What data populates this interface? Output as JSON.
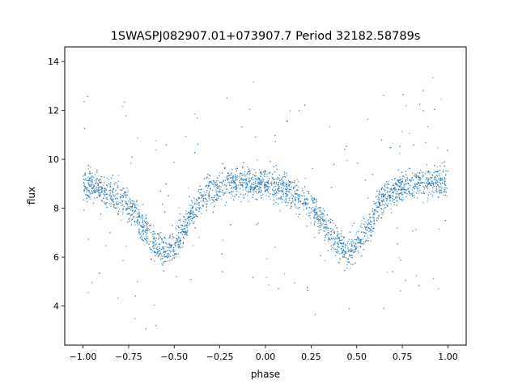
{
  "chart_data": {
    "type": "scatter",
    "title": "1SWASPJ082907.01+073907.7 Period 32182.58789s",
    "xlabel": "phase",
    "ylabel": "flux",
    "xlim": [
      -1.1,
      1.1
    ],
    "ylim": [
      2.4,
      14.6
    ],
    "x_ticks": [
      -1.0,
      -0.75,
      -0.5,
      -0.25,
      0.0,
      0.25,
      0.5,
      0.75,
      1.0
    ],
    "x_tick_labels": [
      "−1.00",
      "−0.75",
      "−0.50",
      "−0.25",
      "0.00",
      "0.25",
      "0.50",
      "0.75",
      "1.00"
    ],
    "y_ticks": [
      4,
      6,
      8,
      10,
      12,
      14
    ],
    "y_tick_labels": [
      "4",
      "6",
      "8",
      "10",
      "12",
      "14"
    ],
    "grid": false,
    "legend": "none",
    "marker_color": "#1f77b4",
    "series": [
      {
        "x": [
          -1.0,
          -0.95,
          -0.9,
          -0.85,
          -0.8,
          -0.75,
          -0.7,
          -0.65,
          -0.6,
          -0.55,
          -0.5,
          -0.45,
          -0.4,
          -0.35,
          -0.3,
          -0.25,
          -0.2,
          -0.15,
          -0.1,
          -0.05,
          0.0,
          0.05,
          0.1,
          0.15,
          0.2,
          0.25,
          0.3,
          0.35,
          0.4,
          0.45,
          0.5,
          0.55,
          0.6,
          0.65,
          0.7,
          0.75,
          0.8,
          0.85,
          0.9,
          0.95,
          1.0
        ],
        "y": [
          9.0,
          8.9,
          8.8,
          8.6,
          8.4,
          8.1,
          7.6,
          7.0,
          6.5,
          6.2,
          6.5,
          7.1,
          7.8,
          8.4,
          8.7,
          8.9,
          9.0,
          9.1,
          9.1,
          9.0,
          9.0,
          8.9,
          8.8,
          8.6,
          8.4,
          8.1,
          7.6,
          7.0,
          6.5,
          6.2,
          6.5,
          7.1,
          7.8,
          8.4,
          8.7,
          8.9,
          9.0,
          9.1,
          9.1,
          9.0,
          9.0
        ]
      }
    ]
  }
}
